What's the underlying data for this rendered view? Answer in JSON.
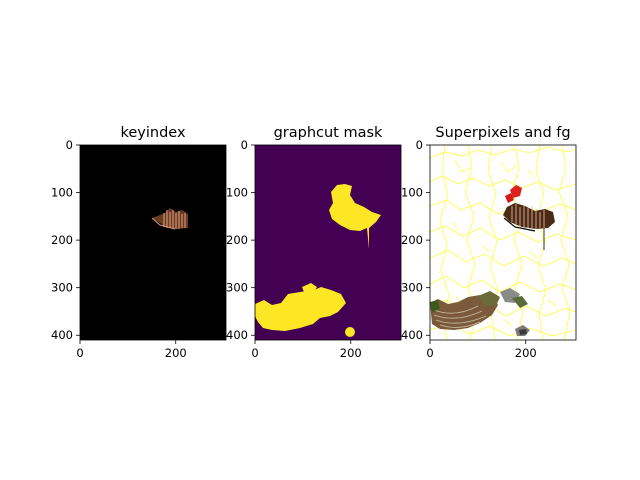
{
  "chart_data": [
    {
      "type": "heatmap",
      "title": "keyindex",
      "xlim": [
        0,
        305
      ],
      "ylim": [
        410,
        0
      ],
      "xticks": [
        0,
        200
      ],
      "yticks": [
        0,
        100,
        200,
        300,
        400
      ],
      "xtick_labels": [
        "0",
        "200"
      ],
      "ytick_labels": [
        "0",
        "100",
        "200",
        "300",
        "400"
      ],
      "background_color": "#000000",
      "foreground_color": "#c98a6a"
    },
    {
      "type": "heatmap",
      "title": "graphcut mask",
      "xlim": [
        0,
        305
      ],
      "ylim": [
        410,
        0
      ],
      "xticks": [
        0,
        200
      ],
      "yticks": [
        0,
        100,
        200,
        300,
        400
      ],
      "xtick_labels": [
        "0",
        "200"
      ],
      "ytick_labels": [
        "0",
        "100",
        "200",
        "300",
        "400"
      ],
      "background_color": "#440154",
      "foreground_color": "#fde725"
    },
    {
      "type": "heatmap",
      "title": "Superpixels and fg",
      "xlim": [
        0,
        305
      ],
      "ylim": [
        410,
        0
      ],
      "xticks": [
        0,
        200
      ],
      "yticks": [
        0,
        100,
        200,
        300,
        400
      ],
      "xtick_labels": [
        "0",
        "200"
      ],
      "ytick_labels": [
        "0",
        "100",
        "200",
        "300",
        "400"
      ],
      "background_color": "#ffffff",
      "foreground_color": "#ffff00"
    }
  ]
}
